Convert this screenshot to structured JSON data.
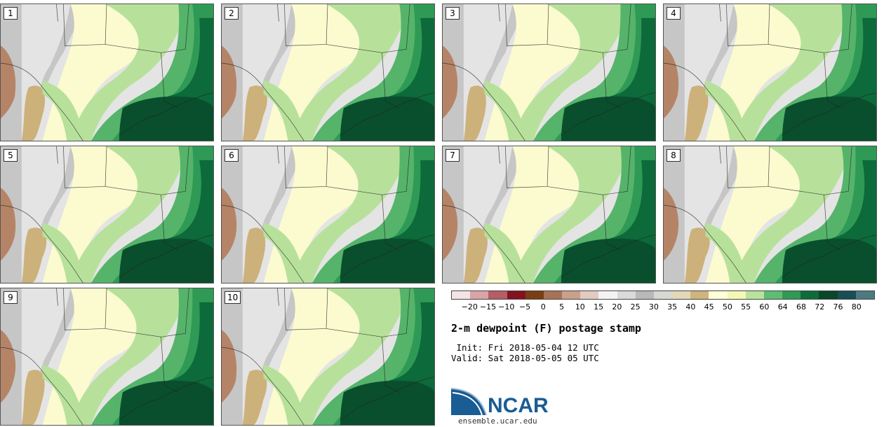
{
  "panels": [
    {
      "label": "1"
    },
    {
      "label": "2"
    },
    {
      "label": "3"
    },
    {
      "label": "4"
    },
    {
      "label": "5"
    },
    {
      "label": "6"
    },
    {
      "label": "7"
    },
    {
      "label": "8"
    },
    {
      "label": "9"
    },
    {
      "label": "10"
    }
  ],
  "colorbar": {
    "colors": [
      "#f3e4e6",
      "#d9a3a8",
      "#b65d66",
      "#84121e",
      "#7a3f12",
      "#a87256",
      "#c9a089",
      "#e2cbc0",
      "#f3f3f3",
      "#dadada",
      "#b9b9b9",
      "#d9d9d3",
      "#e3d8b9",
      "#cfb47c",
      "#ffffd8",
      "#f5f7b5",
      "#b9e39d",
      "#5fbd73",
      "#2f9a55",
      "#0e6c3a",
      "#08472a",
      "#184e55",
      "#4b7a80"
    ],
    "ticks": [
      "−20",
      "−15",
      "−10",
      "−5",
      "0",
      "5",
      "10",
      "15",
      "20",
      "25",
      "30",
      "35",
      "40",
      "45",
      "50",
      "55",
      "60",
      "64",
      "68",
      "72",
      "76",
      "80"
    ]
  },
  "legend_palette": {
    "gray_light": "#e4e4e4",
    "gray": "#c6c6c6",
    "tan": "#cdb17a",
    "brown": "#b58467",
    "pale_yellow": "#fbfbcf",
    "light_green": "#b7e19b",
    "green": "#55b46a",
    "mid_green": "#2f9a55",
    "dark_green": "#0d6a3a",
    "darkest_green": "#0a4f2d"
  },
  "title": "2-m dewpoint (F) postage stamp",
  "init_line": " Init: Fri 2018-05-04 12 UTC",
  "valid_line": "Valid: Sat 2018-05-05 05 UTC",
  "logo": {
    "text": "NCAR",
    "url": "ensemble.ucar.edu",
    "brand_color": "#1a5c94"
  }
}
